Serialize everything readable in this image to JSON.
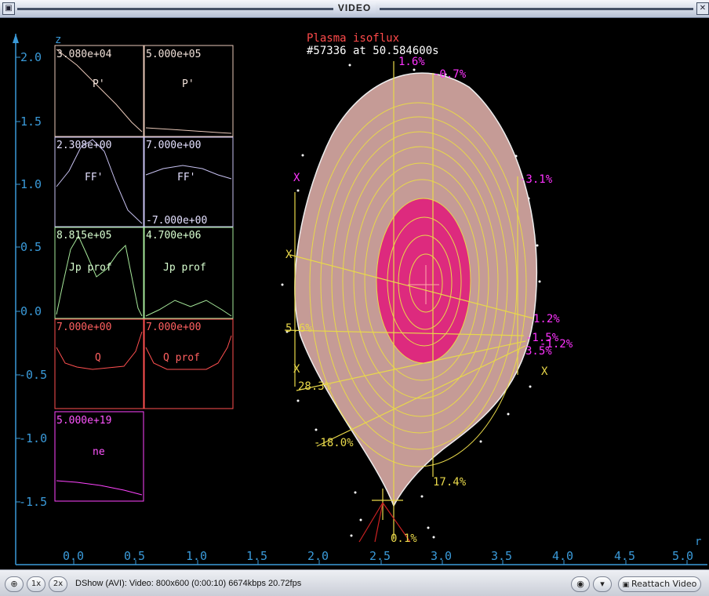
{
  "window": {
    "title": "VIDEO"
  },
  "plot": {
    "title": "Plasma isoflux",
    "shot": "#57336 at 50.584600s",
    "z_axis_label": "z",
    "r_axis_label": "r",
    "z_ticks": [
      "2.0",
      "1.5",
      "1.0",
      "0.5",
      "0.0",
      "-0.5",
      "-1.0",
      "-1.5"
    ],
    "r_ticks": [
      "0.0",
      "0.5",
      "1.0",
      "1.5",
      "2.0",
      "2.5",
      "3.0",
      "3.5",
      "4.0",
      "4.5",
      "5.0"
    ],
    "panels": {
      "p1_value": "3.080e+04",
      "p1_name": "P'",
      "p2_value": "5.000e+05",
      "p2_name": "P'",
      "f1_value": "2.308e+00",
      "f1_name": "FF'",
      "f2_value": "7.000e+00",
      "f2_name": "FF'",
      "f2_min": "-7.000e+00",
      "j1_value": "8.815e+05",
      "j1_name": "Jp prof",
      "j2_value": "4.700e+06",
      "j2_name": "Jp prof",
      "q1_value": "7.000e+00",
      "q1_name": "Q",
      "q2_value": "7.000e+00",
      "q2_name": "Q prof",
      "n1_value": "5.000e+19",
      "n1_name": "ne"
    },
    "annotations": {
      "a_top_v": "1.6%",
      "a_top_m": "-0.7%",
      "a_right_m": "-3.1%",
      "a_right_y1": "1.2%",
      "a_right_m2": "-1.5%",
      "a_right_m3": "-1.2%",
      "a_right_m4": "3.5%",
      "a_left_y": "5.6%",
      "a_lower_y": "28.3%",
      "a_lower_y2": "-18.0%",
      "a_bottom_y": "17.4%",
      "a_bottom": "0.1%",
      "x_marker": "X"
    }
  },
  "statusbar": {
    "zoom1": "1x",
    "zoom2": "2x",
    "status_text": "DShow (AVI): Video: 800x600 (0:00:10) 6674kbps 20.72fps",
    "reattach_label": "Reattach Video"
  },
  "colors": {
    "axis": "#3a9ad9",
    "plasma_fill": "#c59b96",
    "core": "#e0167a",
    "flux": "#e8d84a",
    "magenta": "#ff33ff"
  }
}
